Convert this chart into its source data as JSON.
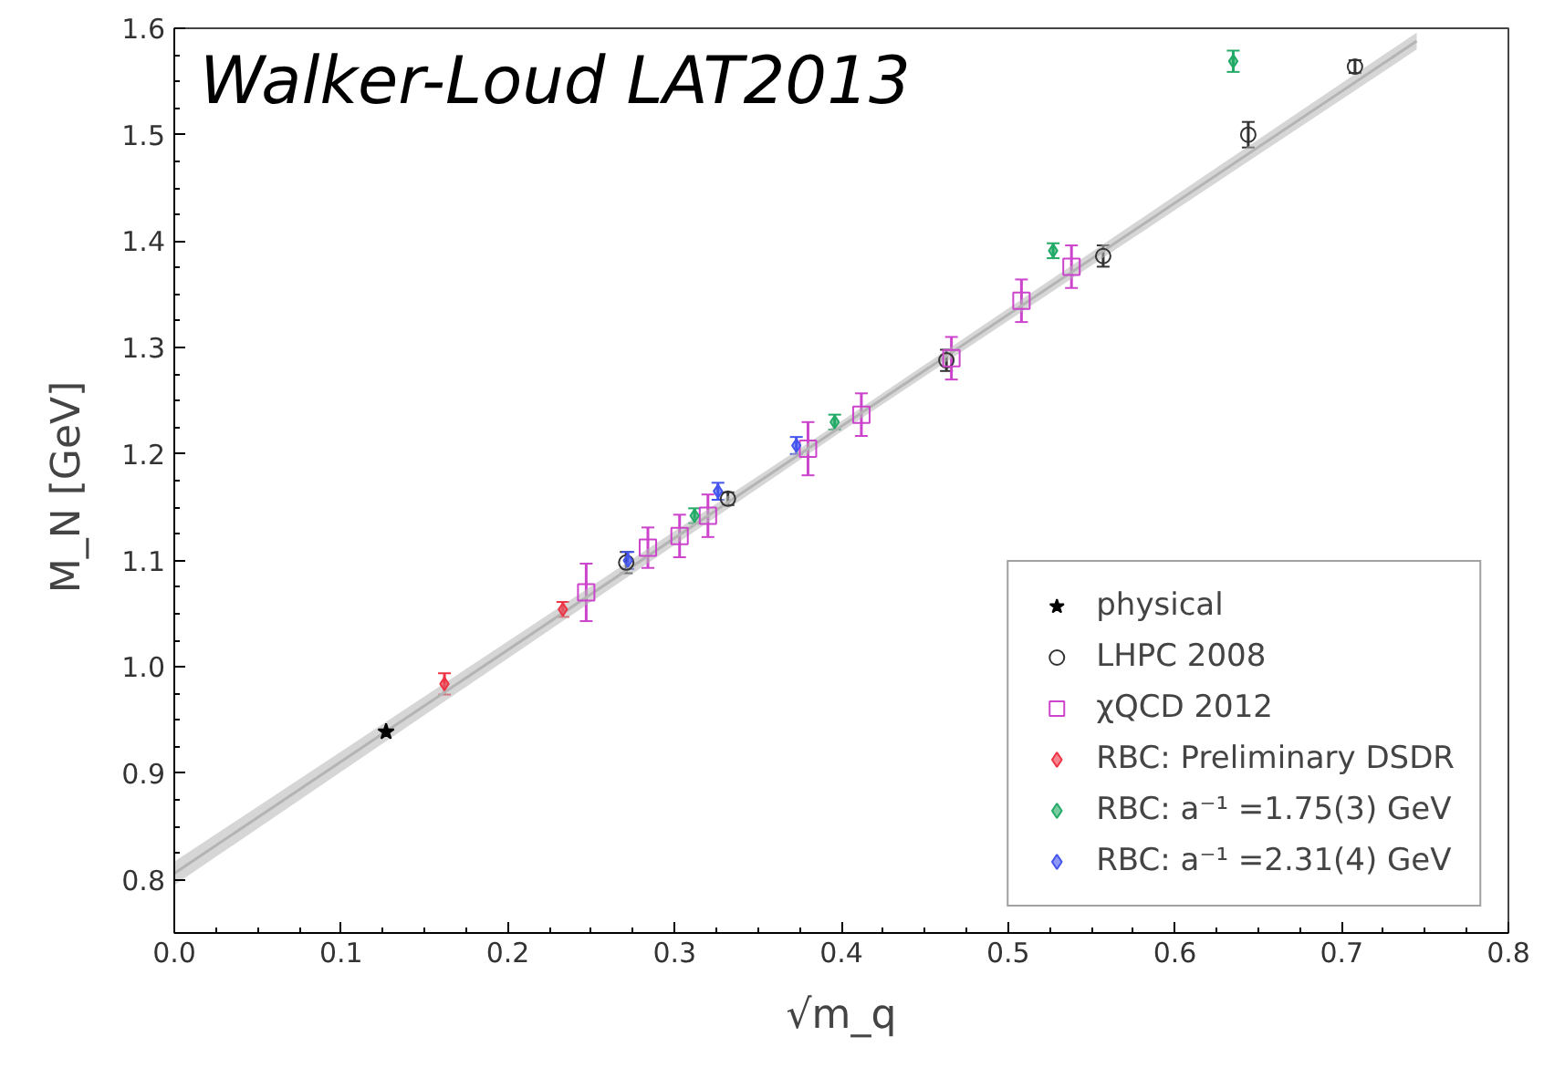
{
  "chart_data": {
    "type": "scatter",
    "title": "Walker-Loud LAT2013",
    "xlabel": "√m_q",
    "ylabel": "M_N  [GeV]",
    "xlim": [
      0.0,
      0.8
    ],
    "ylim": [
      0.75,
      1.6
    ],
    "xticks": [
      {
        "value": 0.0,
        "label": "0.0"
      },
      0.1,
      0.2,
      0.3,
      0.4,
      0.5,
      0.6,
      0.7,
      0.8
    ],
    "yticks": [
      0.8,
      0.9,
      {
        "value": 1.0,
        "label": "1.0"
      },
      1.1,
      1.2,
      1.3,
      1.4,
      1.5,
      1.6
    ],
    "grid": false,
    "legend": "bottom right",
    "series": [
      {
        "type": "line",
        "color": "#b4b4b4",
        "x": [
          0.0,
          0.4,
          0.745
        ],
        "values": [
          0.806,
          1.226,
          1.588
        ],
        "lower": [
          0.795,
          1.221,
          1.58
        ],
        "upper": [
          0.817,
          1.231,
          1.596
        ]
      },
      {
        "name": "physical",
        "color": "#000000",
        "marker": "star",
        "x": [
          0.127
        ],
        "values": [
          0.939
        ]
      },
      {
        "name": "LHPC 2008",
        "color": "#333333",
        "marker": "circle",
        "x": [
          0.271,
          0.332,
          0.463,
          0.557,
          0.644,
          0.708
        ],
        "values": [
          1.098,
          1.158,
          1.288,
          1.386,
          1.5,
          1.564
        ],
        "errors": [
          0.01,
          0.006,
          0.01,
          0.01,
          0.012,
          0.006
        ]
      },
      {
        "name": "χQCD 2012",
        "color": "#cc44cc",
        "marker": "square",
        "x": [
          0.247,
          0.284,
          0.303,
          0.32,
          0.38,
          0.412,
          0.466,
          0.508,
          0.538
        ],
        "values": [
          1.07,
          1.112,
          1.123,
          1.142,
          1.205,
          1.237,
          1.29,
          1.344,
          1.376
        ],
        "errors": [
          0.027,
          0.019,
          0.02,
          0.02,
          0.025,
          0.02,
          0.02,
          0.02,
          0.02
        ]
      },
      {
        "name": "RBC: Preliminary DSDR",
        "color": "#ee3344",
        "marker": "diamond",
        "x": [
          0.162,
          0.233
        ],
        "values": [
          0.984,
          1.054
        ],
        "errors": [
          0.01,
          0.007
        ]
      },
      {
        "name": "RBC: a⁻¹ =1.75(3) GeV",
        "color": "#22aa66",
        "marker": "diamond",
        "x": [
          0.312,
          0.396,
          0.527,
          0.635
        ],
        "values": [
          1.142,
          1.23,
          1.391,
          1.569
        ],
        "errors": [
          0.007,
          0.007,
          0.007,
          0.01
        ]
      },
      {
        "name": "RBC: a⁻¹ =2.31(4) GeV",
        "color": "#4455ee",
        "marker": "diamond",
        "x": [
          0.272,
          0.326,
          0.373
        ],
        "values": [
          1.1,
          1.165,
          1.208
        ],
        "errors": [
          0.008,
          0.008,
          0.008
        ]
      }
    ]
  }
}
